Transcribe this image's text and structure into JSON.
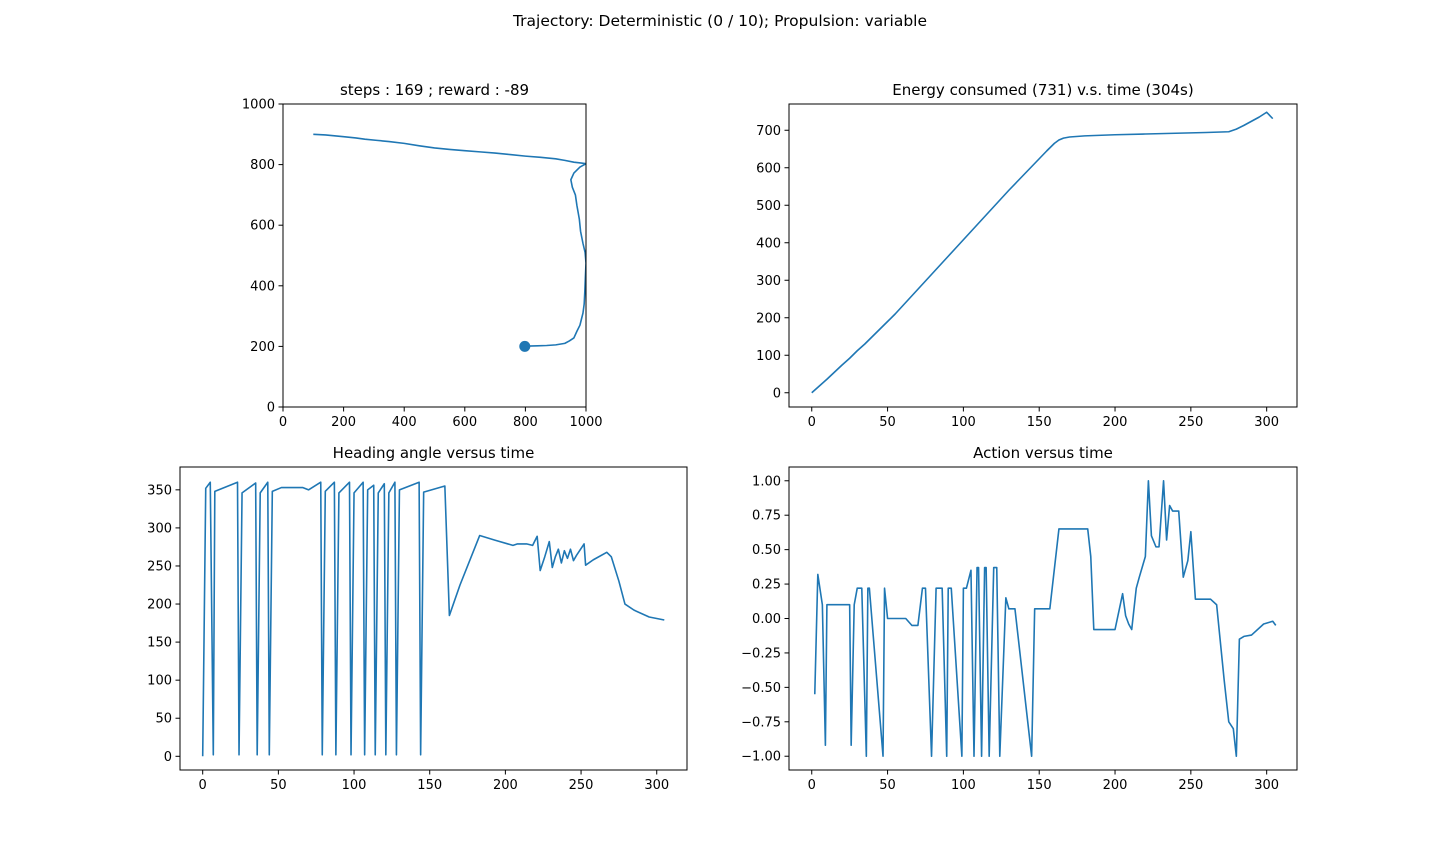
{
  "figure": {
    "suptitle": "Trajectory: Deterministic (0 / 10); Propulsion: variable"
  },
  "colors": {
    "line": "#1f77b4",
    "axes": "#000000",
    "background": "#ffffff"
  },
  "chart_data": [
    {
      "id": "trajectory",
      "type": "line",
      "title": "steps : 169 ; reward : -89",
      "xlabel": "",
      "ylabel": "",
      "xlim": [
        0,
        1000
      ],
      "ylim": [
        0,
        1000
      ],
      "xticks": [
        0,
        200,
        400,
        600,
        800,
        1000
      ],
      "yticks": [
        0,
        200,
        400,
        600,
        800,
        1000
      ],
      "grid": false,
      "series": [
        {
          "x": [
            100,
            140,
            170,
            200,
            240,
            270,
            310,
            350,
            400,
            450,
            500,
            550,
            600,
            650,
            700,
            750,
            800,
            850,
            900,
            930,
            960,
            985,
            1000,
            980,
            960,
            950,
            955,
            965,
            970,
            978,
            982,
            990,
            997,
            1000,
            998,
            996,
            994,
            990,
            985,
            980,
            970,
            960,
            945,
            930,
            900,
            870,
            840,
            810,
            798
          ],
          "y": [
            900,
            898,
            895,
            892,
            888,
            884,
            880,
            876,
            870,
            862,
            855,
            850,
            846,
            842,
            838,
            833,
            828,
            824,
            819,
            814,
            808,
            805,
            803,
            792,
            772,
            750,
            725,
            700,
            665,
            620,
            580,
            540,
            510,
            475,
            430,
            380,
            340,
            310,
            290,
            270,
            250,
            228,
            218,
            210,
            205,
            203,
            202,
            201,
            200
          ]
        }
      ],
      "markers": [
        {
          "x": 798,
          "y": 200
        }
      ]
    },
    {
      "id": "energy",
      "type": "line",
      "title": "Energy consumed (731) v.s. time (304s)",
      "xlabel": "",
      "ylabel": "",
      "xlim": [
        -15,
        320
      ],
      "ylim": [
        -38,
        770
      ],
      "xticks": [
        0,
        50,
        100,
        150,
        200,
        250,
        300
      ],
      "yticks": [
        0,
        100,
        200,
        300,
        400,
        500,
        600,
        700
      ],
      "grid": false,
      "series": [
        {
          "x": [
            0,
            5,
            10,
            15,
            20,
            25,
            30,
            35,
            40,
            45,
            50,
            55,
            60,
            65,
            70,
            75,
            80,
            85,
            90,
            95,
            100,
            105,
            110,
            115,
            120,
            125,
            130,
            135,
            140,
            145,
            150,
            155,
            160,
            163,
            166,
            170,
            180,
            200,
            220,
            240,
            260,
            275,
            280,
            285,
            290,
            295,
            300,
            304
          ],
          "y": [
            0,
            18,
            36,
            55,
            74,
            92,
            112,
            130,
            150,
            170,
            190,
            210,
            232,
            254,
            276,
            298,
            320,
            342,
            364,
            386,
            408,
            430,
            452,
            474,
            496,
            518,
            540,
            561,
            582,
            603,
            624,
            645,
            665,
            674,
            679,
            682,
            685,
            688,
            690,
            692,
            694,
            696,
            703,
            713,
            724,
            735,
            748,
            731
          ]
        }
      ]
    },
    {
      "id": "heading",
      "type": "line",
      "title": "Heading angle versus time",
      "xlabel": "",
      "ylabel": "",
      "xlim": [
        -15,
        320
      ],
      "ylim": [
        -18,
        380
      ],
      "xticks": [
        0,
        50,
        100,
        150,
        200,
        250,
        300
      ],
      "yticks": [
        0,
        50,
        100,
        150,
        200,
        250,
        300,
        350
      ],
      "grid": false,
      "series": [
        {
          "x": [
            0,
            2,
            5,
            7,
            8,
            23,
            24,
            26,
            35,
            36,
            38,
            43,
            44,
            46,
            52,
            66,
            70,
            78,
            79,
            81,
            87,
            88,
            90,
            97,
            98,
            100,
            106,
            107,
            109,
            113,
            114,
            116,
            120,
            121,
            123,
            127,
            128,
            130,
            143,
            144,
            146,
            160,
            163,
            170,
            183,
            193,
            205,
            208,
            214,
            218,
            221,
            223,
            226,
            229,
            231,
            233,
            235,
            237,
            239,
            241,
            243,
            245,
            247,
            252,
            253,
            258,
            267,
            270,
            275,
            279,
            285,
            295,
            305
          ],
          "y": [
            0,
            352,
            360,
            2,
            348,
            360,
            2,
            346,
            359,
            2,
            346,
            360,
            2,
            348,
            353,
            353,
            350,
            360,
            2,
            348,
            360,
            2,
            346,
            360,
            2,
            346,
            360,
            2,
            350,
            356,
            2,
            346,
            358,
            2,
            346,
            360,
            2,
            350,
            360,
            2,
            347,
            355,
            185,
            225,
            290,
            284,
            277,
            279,
            279,
            277,
            289,
            244,
            262,
            282,
            248,
            262,
            272,
            254,
            270,
            260,
            272,
            257,
            264,
            279,
            251,
            258,
            268,
            262,
            230,
            200,
            192,
            183,
            179
          ]
        }
      ]
    },
    {
      "id": "action",
      "type": "line",
      "title": "Action versus time",
      "xlabel": "",
      "ylabel": "",
      "xlim": [
        -15,
        320
      ],
      "ylim": [
        -1.1,
        1.1
      ],
      "xticks": [
        0,
        50,
        100,
        150,
        200,
        250,
        300
      ],
      "yticks": [
        -1.0,
        -0.75,
        -0.5,
        -0.25,
        0.0,
        0.25,
        0.5,
        0.75,
        1.0
      ],
      "grid": false,
      "series": [
        {
          "x": [
            2,
            4,
            7,
            9,
            10,
            25,
            26,
            28,
            30,
            33,
            36,
            37,
            38,
            47,
            48,
            50,
            53,
            62,
            66,
            70,
            73,
            75,
            79,
            82,
            86,
            89,
            90,
            92,
            99,
            100,
            102,
            105,
            107,
            109,
            110,
            112,
            114,
            115,
            117,
            120,
            122,
            124,
            128,
            130,
            132,
            134,
            145,
            147,
            149,
            157,
            163,
            166,
            182,
            184,
            186,
            190,
            200,
            205,
            207,
            209,
            211,
            214,
            216,
            220,
            222,
            224,
            227,
            229,
            232,
            234,
            236,
            238,
            240,
            242,
            245,
            248,
            250,
            253,
            260,
            263,
            267,
            272,
            275,
            278,
            280,
            282,
            285,
            290,
            298,
            304,
            306
          ],
          "y": [
            -0.55,
            0.32,
            0.1,
            -0.92,
            0.1,
            0.1,
            -0.92,
            0.1,
            0.22,
            0.22,
            -1.0,
            0.22,
            0.22,
            -1.0,
            0.22,
            0.0,
            0.0,
            0.0,
            -0.05,
            -0.05,
            0.22,
            0.22,
            -1.0,
            0.22,
            0.22,
            -1.0,
            0.22,
            0.22,
            -1.0,
            0.22,
            0.22,
            0.35,
            -1.0,
            0.37,
            0.37,
            -1.0,
            0.37,
            0.37,
            -1.0,
            0.37,
            0.37,
            -1.0,
            0.15,
            0.07,
            0.07,
            0.07,
            -1.0,
            0.07,
            0.07,
            0.07,
            0.65,
            0.65,
            0.65,
            0.45,
            -0.08,
            -0.08,
            -0.08,
            0.18,
            0.02,
            -0.04,
            -0.08,
            0.22,
            0.3,
            0.45,
            1.0,
            0.6,
            0.52,
            0.52,
            1.0,
            0.57,
            0.82,
            0.78,
            0.78,
            0.78,
            0.3,
            0.42,
            0.63,
            0.14,
            0.14,
            0.14,
            0.1,
            -0.45,
            -0.75,
            -0.8,
            -1.0,
            -0.15,
            -0.13,
            -0.12,
            -0.04,
            -0.02,
            -0.05
          ]
        }
      ]
    }
  ]
}
